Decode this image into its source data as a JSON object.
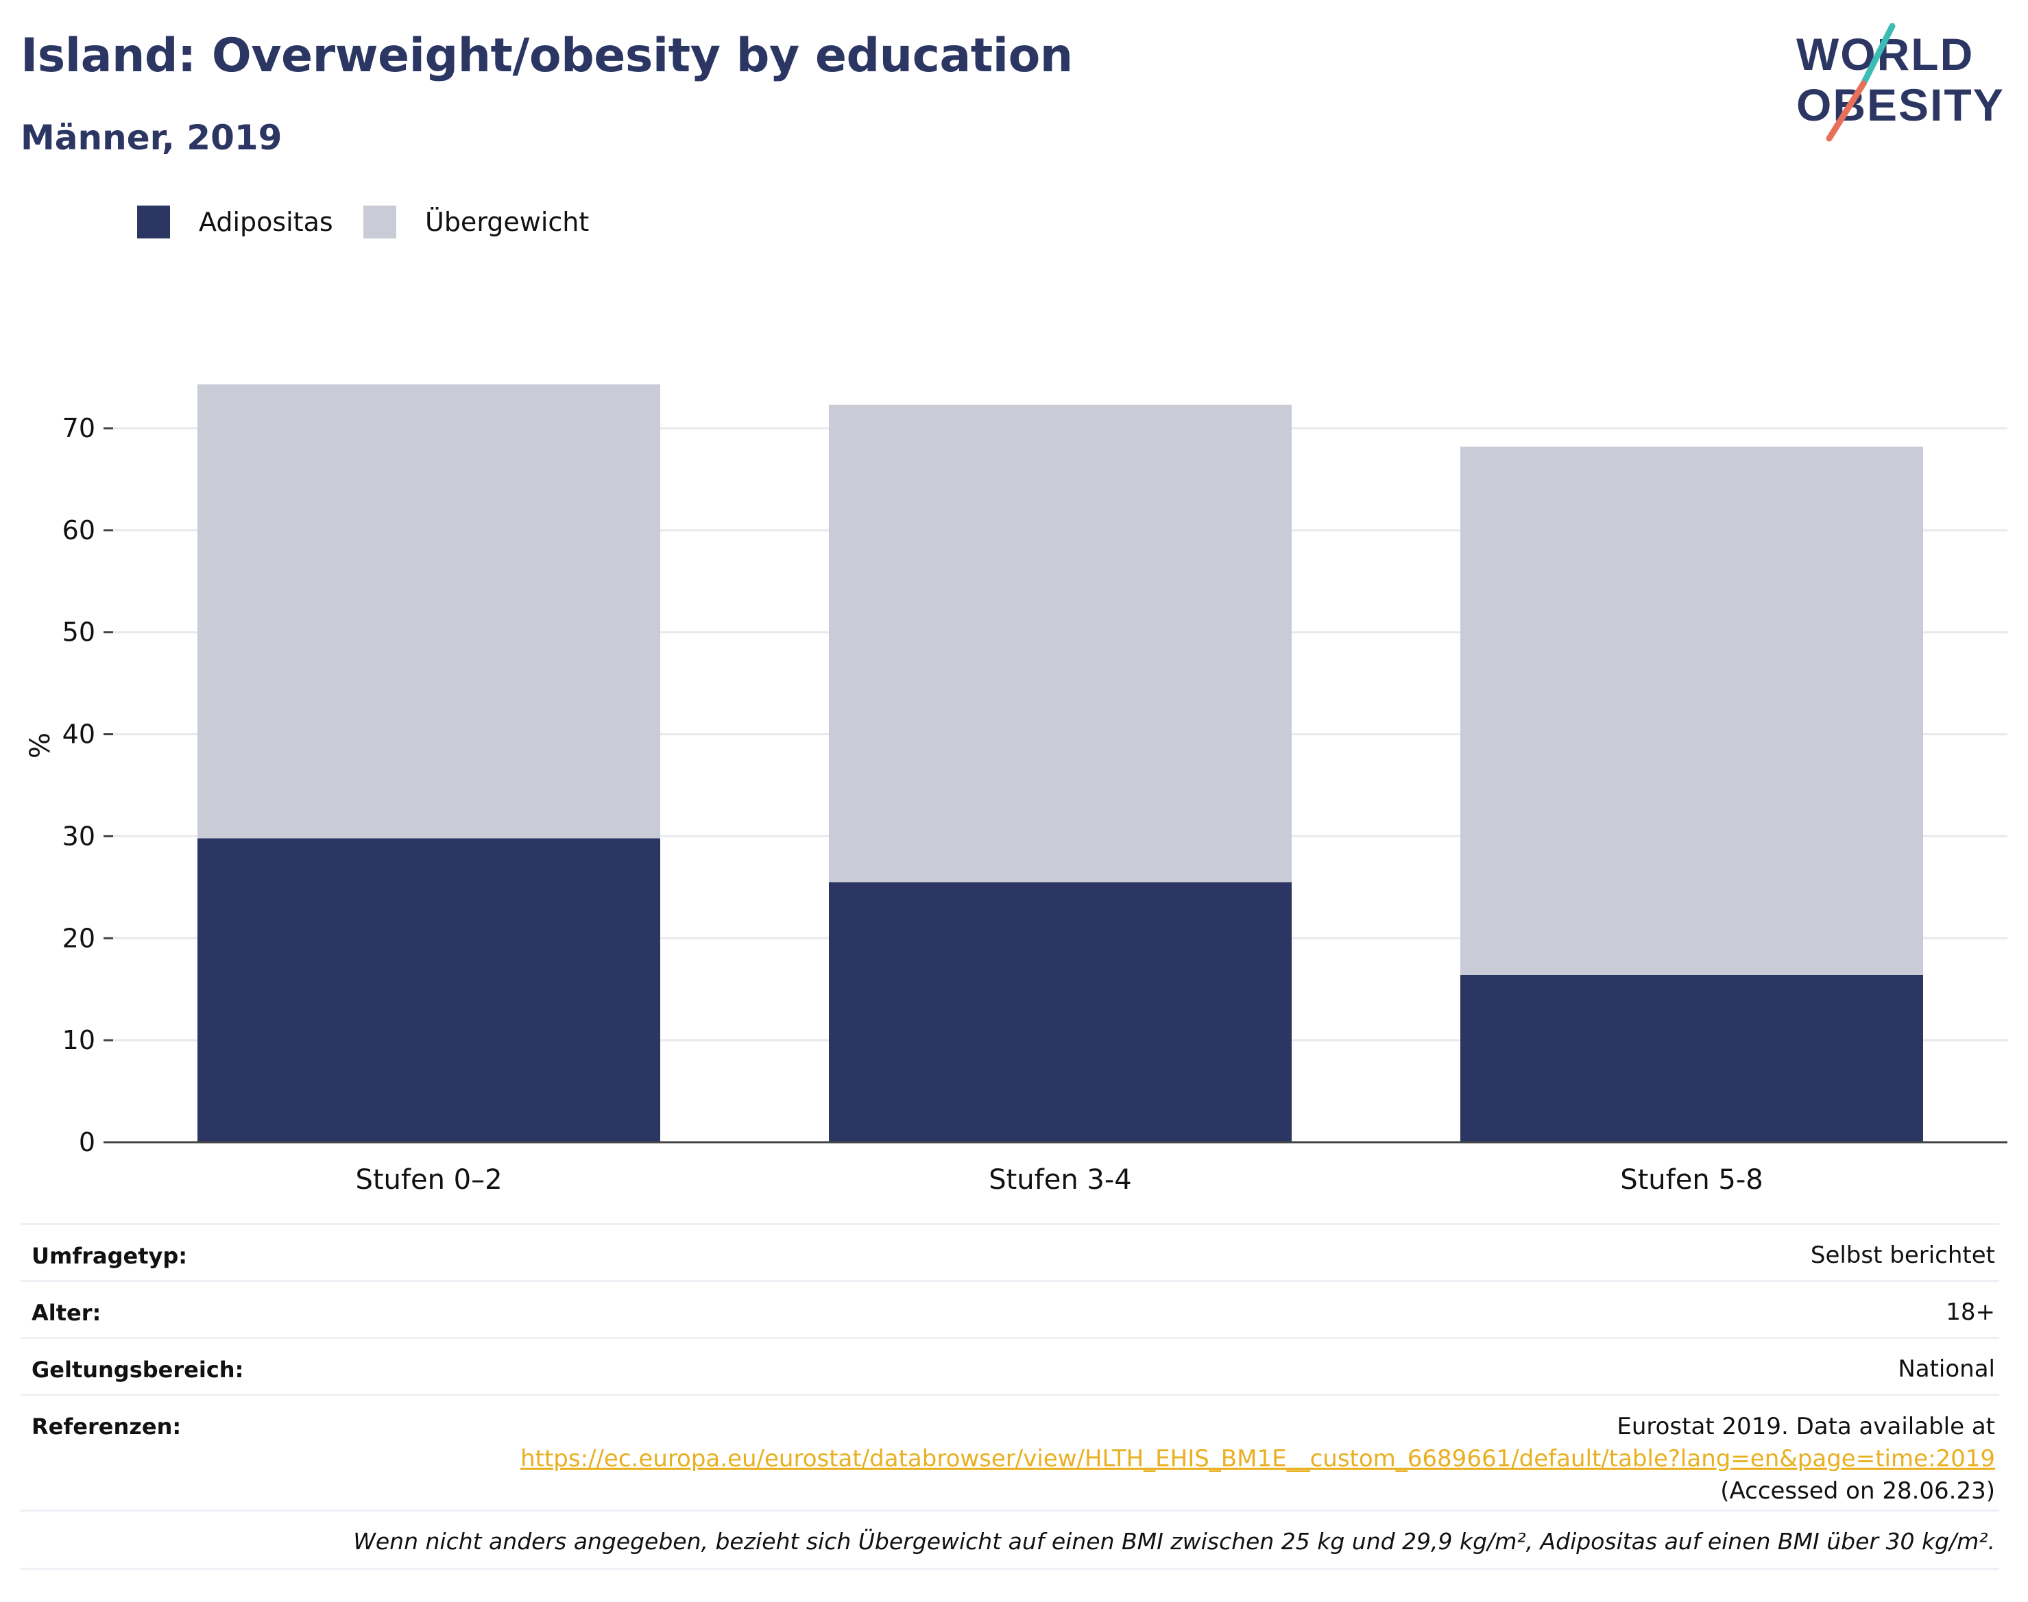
{
  "header": {
    "title": "Island: Overweight/obesity by education",
    "subtitle": "Männer, 2019"
  },
  "logo": {
    "line1": "WORLD",
    "line2": "OBESITY",
    "colors": {
      "text": "#2c3662",
      "slash_top": "#3cbcb4",
      "slash_bottom": "#e8705a"
    }
  },
  "colors": {
    "obesity": "#2b3663",
    "overweight": "#c9cbd7",
    "gridline": "#e8e8ee",
    "axis": "#444444",
    "link": "#e8b020"
  },
  "chart_data": {
    "type": "bar",
    "stacked": true,
    "categories": [
      "Stufen 0–2",
      "Stufen 3-4",
      "Stufen 5-8"
    ],
    "series": [
      {
        "name": "Adipositas",
        "values": [
          29.8,
          25.5,
          16.4
        ]
      },
      {
        "name": "Übergewicht",
        "values": [
          44.5,
          46.8,
          51.8
        ]
      }
    ],
    "ylabel": "%",
    "ylim": [
      0,
      75
    ],
    "yticks": [
      0,
      10,
      20,
      30,
      40,
      50,
      60,
      70
    ],
    "grid": true,
    "legend_position": "top-left"
  },
  "info": [
    {
      "key": "Umfragetyp:",
      "value": "Selbst berichtet"
    },
    {
      "key": "Alter:",
      "value": "18+"
    },
    {
      "key": "Geltungsbereich:",
      "value": "National"
    }
  ],
  "references": {
    "key": "Referenzen:",
    "line1": "Eurostat 2019. Data available at",
    "link": "https://ec.europa.eu/eurostat/databrowser/view/HLTH_EHIS_BM1E__custom_6689661/default/table?lang=en&page=time:2019",
    "line3": "(Accessed on 28.06.23)"
  },
  "footnote": "Wenn nicht anders angegeben, bezieht sich Übergewicht auf einen BMI zwischen 25 kg und 29,9 kg/m², Adipositas auf einen BMI über 30 kg/m²."
}
